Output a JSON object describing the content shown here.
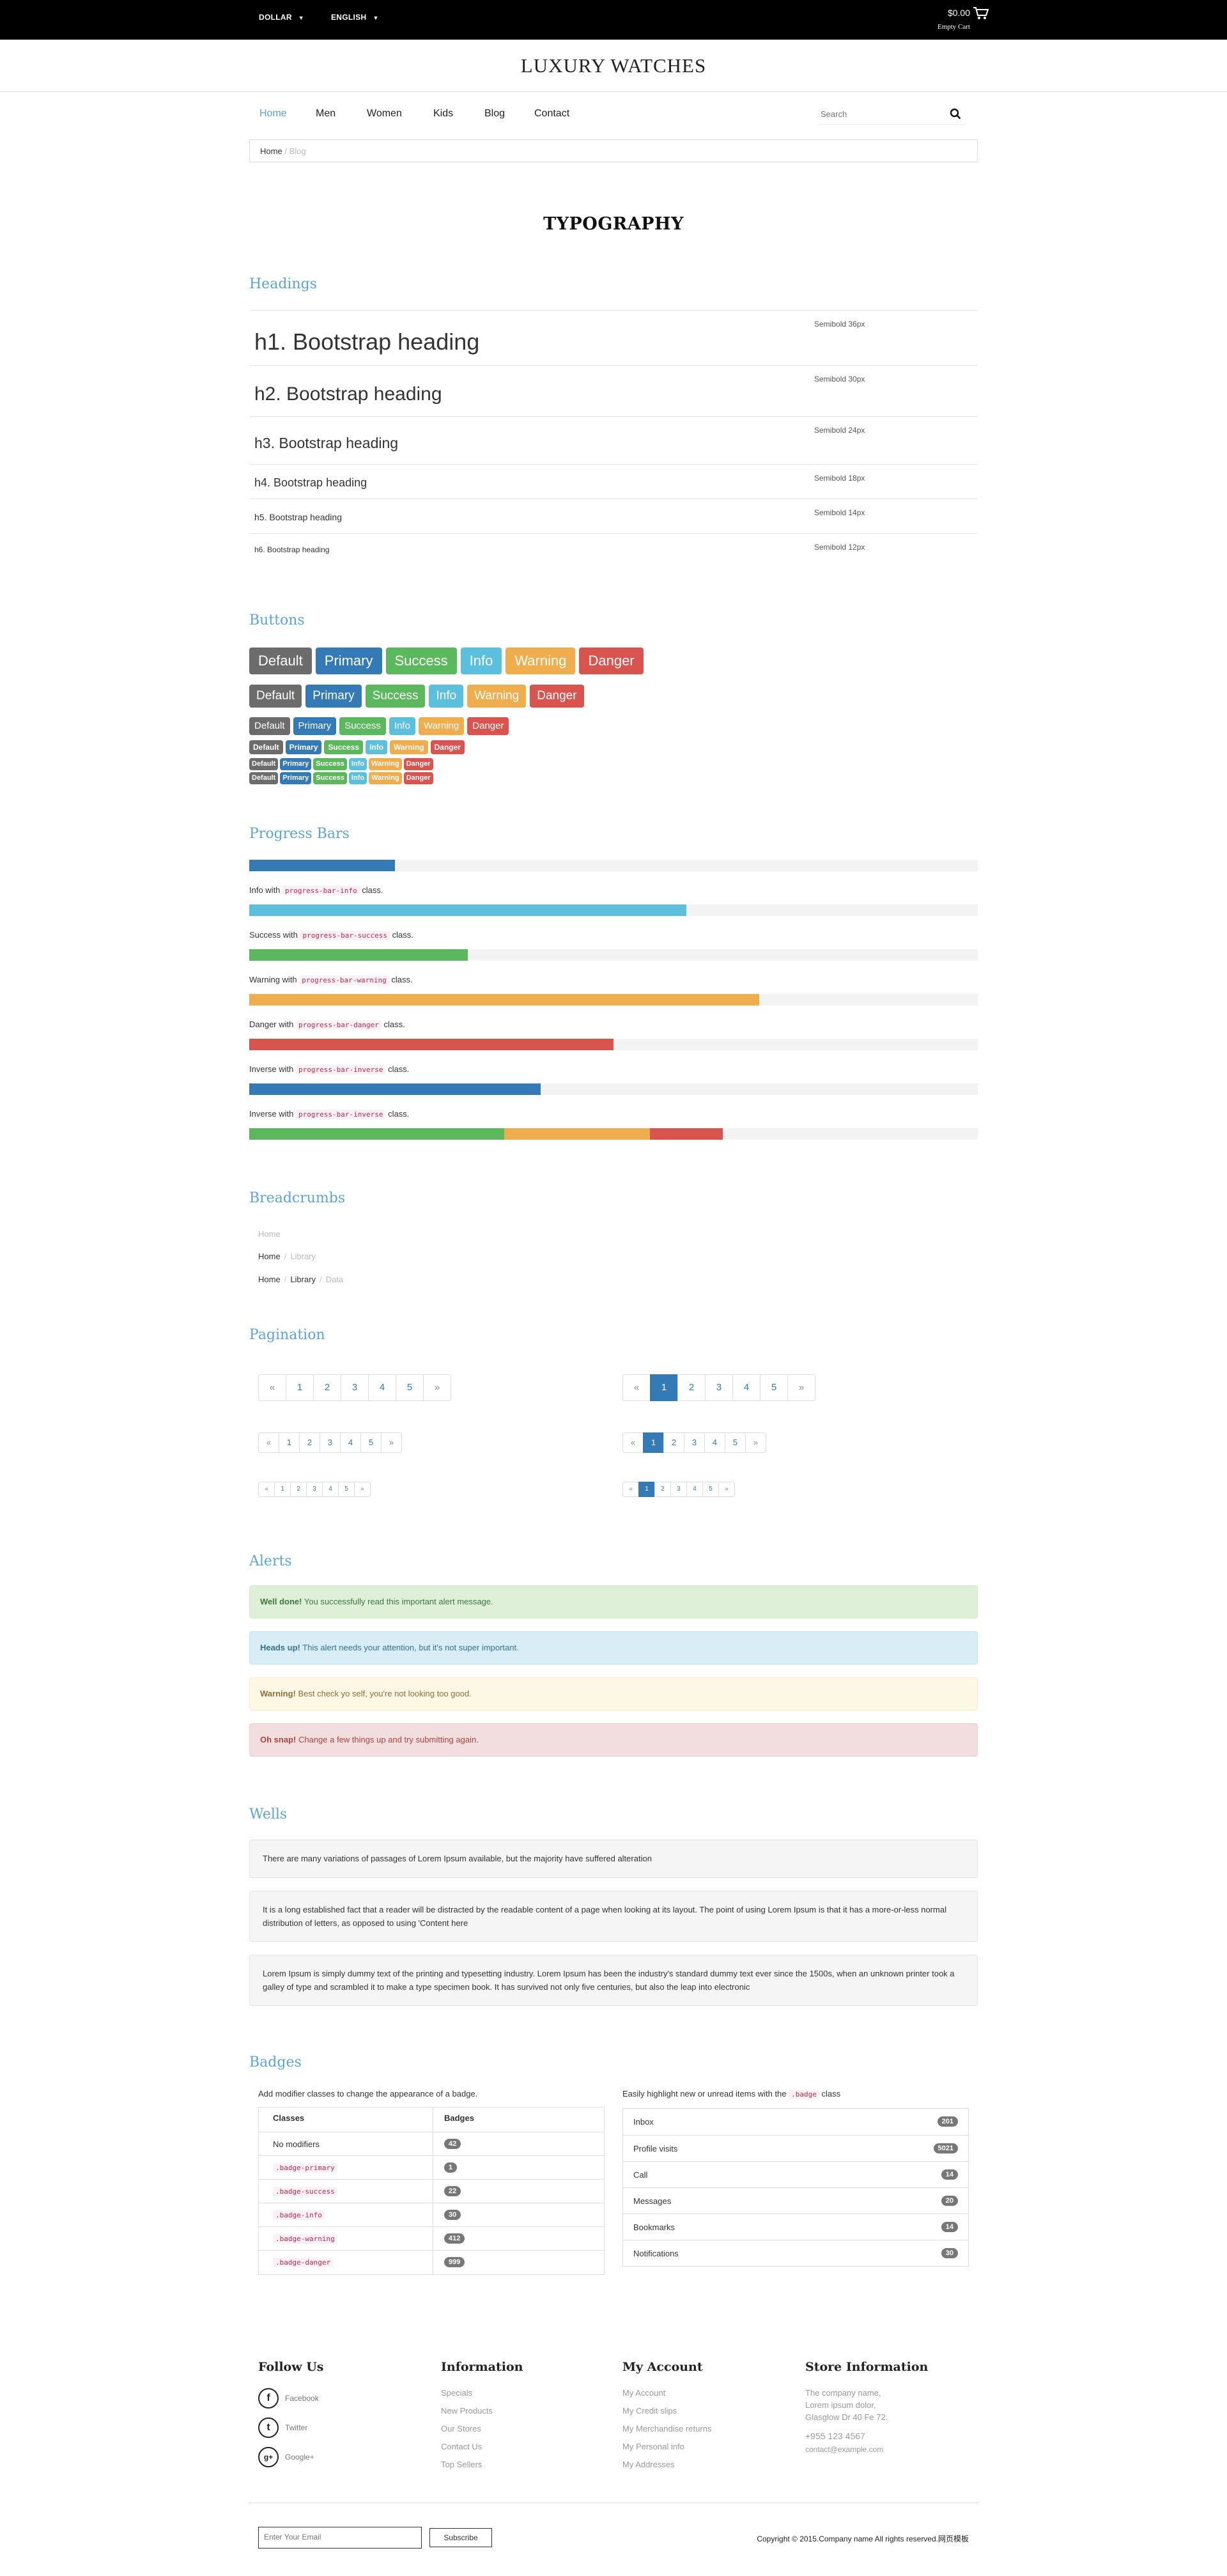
{
  "topbar": {
    "currency": "DOLLAR",
    "language": "ENGLISH",
    "cart_amount": "$0.00",
    "cart_status": "Empty Cart"
  },
  "brand": {
    "logo": "LUXURY WATCHES"
  },
  "nav": {
    "items": [
      "Home",
      "Men",
      "Women",
      "Kids",
      "Blog",
      "Contact"
    ],
    "active": "Home",
    "search_placeholder": "Search"
  },
  "breadcrumb": {
    "home": "Home",
    "current": "Blog"
  },
  "page": {
    "title": "TYPOGRAPHY"
  },
  "headings": {
    "title": "Headings",
    "rows": [
      {
        "text": "h1. Bootstrap heading",
        "meta": "Semibold 36px"
      },
      {
        "text": "h2. Bootstrap heading",
        "meta": "Semibold 30px"
      },
      {
        "text": "h3. Bootstrap heading",
        "meta": "Semibold 24px"
      },
      {
        "text": "h4. Bootstrap heading",
        "meta": "Semibold 18px"
      },
      {
        "text": "h5. Bootstrap heading",
        "meta": "Semibold 14px"
      },
      {
        "text": "h6. Bootstrap heading",
        "meta": "Semibold 12px"
      }
    ]
  },
  "buttons": {
    "title": "Buttons",
    "labels": [
      "Default",
      "Primary",
      "Success",
      "Info",
      "Warning",
      "Danger"
    ]
  },
  "progress": {
    "title": "Progress Bars",
    "bars": [
      {
        "label_pre": "",
        "code": "",
        "label_post": "",
        "segments": [
          {
            "value": 0.2,
            "color": "#337ab7"
          }
        ]
      },
      {
        "label_pre": "Info with",
        "code": "progress-bar-info",
        "label_post": "class.",
        "segments": [
          {
            "value": 0.6,
            "color": "#5bc0de"
          }
        ]
      },
      {
        "label_pre": "Success with",
        "code": "progress-bar-success",
        "label_post": "class.",
        "segments": [
          {
            "value": 0.3,
            "color": "#5cb85c"
          }
        ]
      },
      {
        "label_pre": "Warning with",
        "code": "progress-bar-warning",
        "label_post": "class.",
        "segments": [
          {
            "value": 0.7,
            "color": "#f0ad4e"
          }
        ]
      },
      {
        "label_pre": "Danger with",
        "code": "progress-bar-danger",
        "label_post": "class.",
        "segments": [
          {
            "value": 0.5,
            "color": "#d9534f"
          }
        ]
      },
      {
        "label_pre": "Inverse with",
        "code": "progress-bar-inverse",
        "label_post": "class.",
        "segments": [
          {
            "value": 0.4,
            "color": "#337ab7"
          }
        ]
      },
      {
        "label_pre": "Inverse with",
        "code": "progress-bar-inverse",
        "label_post": "class.",
        "segments": [
          {
            "value": 0.35,
            "color": "#5cb85c"
          },
          {
            "value": 0.2,
            "color": "#f0ad4e"
          },
          {
            "value": 0.1,
            "color": "#d9534f"
          }
        ]
      }
    ]
  },
  "breadcrumbs": {
    "title": "Breadcrumbs",
    "rows": [
      [
        "Home"
      ],
      [
        "Home",
        "Library"
      ],
      [
        "Home",
        "Library",
        "Data"
      ]
    ]
  },
  "pagination": {
    "title": "Pagination",
    "prev": "«",
    "next": "»",
    "pages": [
      "1",
      "2",
      "3",
      "4",
      "5"
    ]
  },
  "alerts": {
    "title": "Alerts",
    "items": [
      {
        "type": "success",
        "strong": "Well done!",
        "text": "You successfully read this important alert message."
      },
      {
        "type": "info",
        "strong": "Heads up!",
        "text": "This alert needs your attention, but it's not super important."
      },
      {
        "type": "warning",
        "strong": "Warning!",
        "text": "Best check yo self, you're not looking too good."
      },
      {
        "type": "danger",
        "strong": "Oh snap!",
        "text": "Change a few things up and try submitting again."
      }
    ]
  },
  "wells": {
    "title": "Wells",
    "items": [
      "There are many variations of passages of Lorem Ipsum available, but the majority have suffered alteration",
      "It is a long established fact that a reader will be distracted by the readable content of a page when looking at its layout. The point of using Lorem Ipsum is that it has a more-or-less normal distribution of letters, as opposed to using 'Content here",
      "Lorem Ipsum is simply dummy text of the printing and typesetting industry. Lorem Ipsum has been the industry's standard dummy text ever since the 1500s, when an unknown printer took a galley of type and scrambled it to make a type specimen book. It has survived not only five centuries, but also the leap into electronic"
    ]
  },
  "badges": {
    "title": "Badges",
    "left_intro": "Add modifier classes to change the appearance of a badge.",
    "col_classes": "Classes",
    "col_badges": "Badges",
    "rows": [
      {
        "cls": "No modifiers",
        "code": false,
        "value": "42",
        "color": "#777777"
      },
      {
        "cls": ".badge-primary",
        "code": true,
        "value": "1",
        "color": "#777777"
      },
      {
        "cls": ".badge-success",
        "code": true,
        "value": "22",
        "color": "#777777"
      },
      {
        "cls": ".badge-info",
        "code": true,
        "value": "30",
        "color": "#777777"
      },
      {
        "cls": ".badge-warning",
        "code": true,
        "value": "412",
        "color": "#777777"
      },
      {
        "cls": ".badge-danger",
        "code": true,
        "value": "999",
        "color": "#777777"
      }
    ],
    "right_intro_pre": "Easily highlight new or unread items with the",
    "right_intro_code": ".badge",
    "right_intro_post": "class",
    "list": [
      {
        "label": "Inbox",
        "value": "201"
      },
      {
        "label": "Profile visits",
        "value": "5021"
      },
      {
        "label": "Call",
        "value": "14"
      },
      {
        "label": "Messages",
        "value": "20"
      },
      {
        "label": "Bookmarks",
        "value": "14"
      },
      {
        "label": "Notifications",
        "value": "30"
      }
    ]
  },
  "footer": {
    "follow": {
      "title": "Follow Us",
      "items": [
        "Facebook",
        "Twitter",
        "Google+"
      ]
    },
    "information": {
      "title": "Information",
      "links": [
        "Specials",
        "New Products",
        "Our Stores",
        "Contact Us",
        "Top Sellers"
      ]
    },
    "account": {
      "title": "My Account",
      "links": [
        "My Account",
        "My Credit slips",
        "My Merchandise returns",
        "My Personal info",
        "My Addresses"
      ]
    },
    "store": {
      "title": "Store Information",
      "lines": [
        "The company name,",
        "Lorem ipsum dolor,",
        "Glasglow Dr 40 Fe 72."
      ],
      "phone": "+955 123 4567",
      "email": "contact@example.com"
    },
    "newsletter_placeholder": "Enter Your Email",
    "subscribe": "Subscribe",
    "copyright": "Copyright © 2015.Company name All rights reserved.网页模板"
  }
}
